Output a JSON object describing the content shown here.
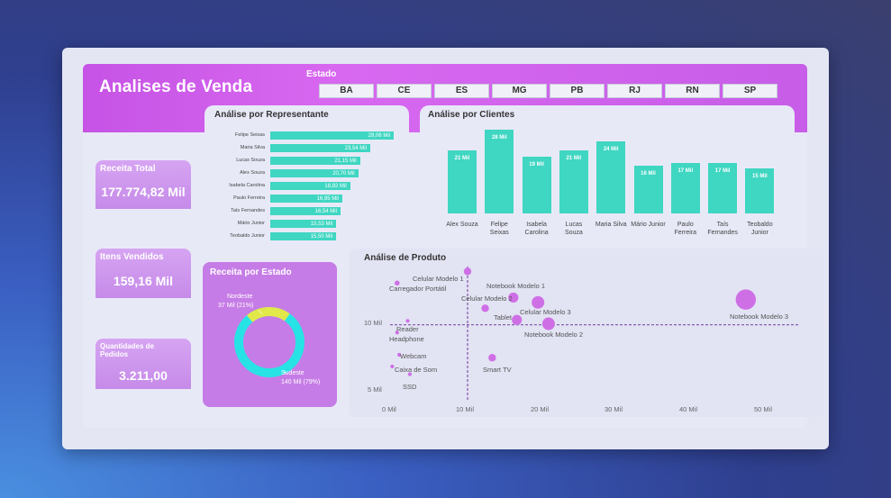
{
  "header": {
    "title": "Analises de Venda",
    "estado_label": "Estado"
  },
  "estados": [
    "BA",
    "CE",
    "ES",
    "MG",
    "PB",
    "RJ",
    "RN",
    "SP"
  ],
  "kpis": {
    "receita_total": {
      "title": "Receita Total",
      "value": "177.774,82 Mil"
    },
    "itens_vendidos": {
      "title": "Itens Vendidos",
      "value": "159,16 Mil"
    },
    "quantidade_pedidos": {
      "title": "Quantidades de Pedidos",
      "value": "3.211,00"
    }
  },
  "representante": {
    "title": "Análise por Representante",
    "names": [
      "Felipe Seixas",
      "Maria Silva",
      "Lucas Souza",
      "Alex Souza",
      "Isabela Carolina",
      "Paulo Ferreira",
      "Taís Fernandes",
      "Mário Junior",
      "Teobaldo Junior"
    ],
    "labels": [
      "29,06 Mil",
      "23,54 Mil",
      "21,15 Mil",
      "20,70 Mil",
      "18,82 Mil",
      "16,95 Mil",
      "16,54 Mil",
      "15,53 Mil",
      "15,50 Mil"
    ]
  },
  "clientes": {
    "title": "Análise por Clientes",
    "names": [
      "Alex Souza",
      "Felipe Seixas",
      "Isabela Carolina",
      "Lucas Souza",
      "Maria Silva",
      "Mário Junior",
      "Paulo Ferreira",
      "Taís Fernandes",
      "Teobaldo Junior"
    ],
    "labels": [
      "21 Mil",
      "28 Mil",
      "19 Mil",
      "21 Mil",
      "24 Mil",
      "16 Mil",
      "17 Mil",
      "17 Mil",
      "15 Mil"
    ]
  },
  "receita_estado": {
    "title": "Receita por Estado",
    "nordeste_name": "Nordeste",
    "nordeste_value": "37 Mil (21%)",
    "sudeste_name": "Sudeste",
    "sudeste_value": "140 Mil (79%)"
  },
  "produto": {
    "title": "Análise de Produto",
    "labels": [
      "Celular Modelo 1",
      "Carregador Portátil",
      "Notebook Modelo 1",
      "Celular Modelo 2",
      "Celular Modelo 3",
      "Tablet",
      "Notebook Modelo 3",
      "Notebook Modelo 2",
      "Reader",
      "Headphone",
      "Webcam",
      "Smart TV",
      "Caixa de Som",
      "SSD"
    ],
    "x_ticks": [
      "0 Mil",
      "10 Mil",
      "20 Mil",
      "30 Mil",
      "40 Mil",
      "50 Mil"
    ],
    "y_ticks": [
      "10 Mil",
      "5 Mil"
    ]
  },
  "chart_data": [
    {
      "type": "bar",
      "title": "Análise por Representante",
      "orientation": "horizontal",
      "categories": [
        "Felipe Seixas",
        "Maria Silva",
        "Lucas Souza",
        "Alex Souza",
        "Isabela Carolina",
        "Paulo Ferreira",
        "Taís Fernandes",
        "Mário Junior",
        "Teobaldo Junior"
      ],
      "values": [
        29.06,
        23.54,
        21.15,
        20.7,
        18.82,
        16.95,
        16.54,
        15.53,
        15.5
      ]
    },
    {
      "type": "bar",
      "title": "Análise por Clientes",
      "categories": [
        "Alex Souza",
        "Felipe Seixas",
        "Isabela Carolina",
        "Lucas Souza",
        "Maria Silva",
        "Mário Junior",
        "Paulo Ferreira",
        "Taís Fernandes",
        "Teobaldo Junior"
      ],
      "values": [
        21,
        28,
        19,
        21,
        24,
        16,
        17,
        17,
        15
      ]
    },
    {
      "type": "pie",
      "title": "Receita por Estado",
      "categories": [
        "Nordeste",
        "Sudeste"
      ],
      "values": [
        37,
        140
      ],
      "colors": [
        "#e2e84a",
        "#27e3e6"
      ]
    },
    {
      "type": "scatter",
      "title": "Análise de Produto",
      "xlim": [
        0,
        55
      ],
      "ylim": [
        3,
        16
      ],
      "points": [
        {
          "name": "Celular Modelo 1",
          "x": 11,
          "y": 15.5,
          "size": 3
        },
        {
          "name": "Carregador Portátil",
          "x": 1,
          "y": 14.3,
          "size": 2
        },
        {
          "name": "Notebook Modelo 1",
          "x": 17.5,
          "y": 12.8,
          "size": 4
        },
        {
          "name": "Celular Modelo 2",
          "x": 13.5,
          "y": 11.7,
          "size": 3
        },
        {
          "name": "Celular Modelo 3",
          "x": 21,
          "y": 12.3,
          "size": 5
        },
        {
          "name": "Tablet",
          "x": 18,
          "y": 10.5,
          "size": 4
        },
        {
          "name": "Notebook Modelo 3",
          "x": 50.5,
          "y": 12.6,
          "size": 8
        },
        {
          "name": "Notebook Modelo 2",
          "x": 22.5,
          "y": 10.1,
          "size": 5
        },
        {
          "name": "Reader",
          "x": 2.5,
          "y": 10.4,
          "size": 1.5
        },
        {
          "name": "Headphone",
          "x": 1,
          "y": 9.2,
          "size": 1.5
        },
        {
          "name": "Webcam",
          "x": 1.3,
          "y": 6.9,
          "size": 1.5
        },
        {
          "name": "Smart TV",
          "x": 14.5,
          "y": 6.6,
          "size": 3
        },
        {
          "name": "Caixa de Som",
          "x": 0.3,
          "y": 5.7,
          "size": 1.5
        },
        {
          "name": "SSD",
          "x": 2.8,
          "y": 4.9,
          "size": 1.5
        }
      ],
      "reference_lines": {
        "x": 11,
        "y": 10
      }
    }
  ]
}
